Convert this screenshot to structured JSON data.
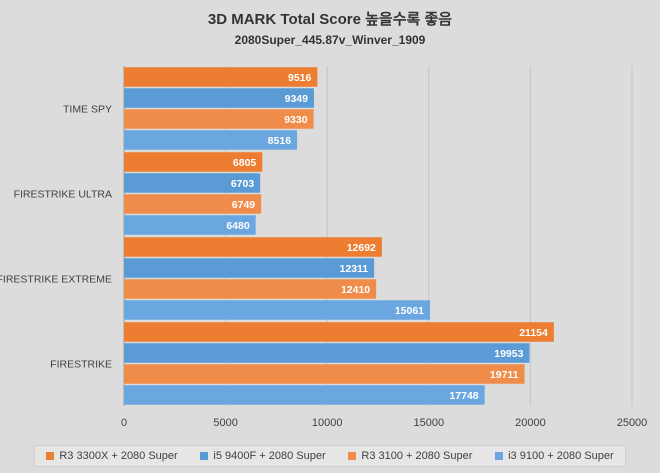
{
  "chart_data": {
    "type": "bar",
    "orientation": "horizontal",
    "title": "3D MARK Total Score 높을수록 좋음",
    "subtitle": "2080Super_445.87v_Winver_1909",
    "categories": [
      "TIME SPY",
      "FIRESTRIKE ULTRA",
      "FIRESTRIKE EXTREME",
      "FIRESTRIKE"
    ],
    "series": [
      {
        "name": "R3 3300X + 2080 Super",
        "color": "#ed7d31",
        "values": [
          9516,
          6805,
          12692,
          21154
        ]
      },
      {
        "name": "i5 9400F + 2080 Super",
        "color": "#5b9bd5",
        "values": [
          9349,
          6703,
          12311,
          19953
        ]
      },
      {
        "name": "R3 3100 + 2080 Super",
        "color": "#f08c4a",
        "values": [
          9330,
          6749,
          12410,
          19711
        ]
      },
      {
        "name": "i3 9100 + 2080 Super",
        "color": "#6aa6e0",
        "values": [
          8516,
          6480,
          15061,
          17748
        ]
      }
    ],
    "xlim": [
      0,
      25000
    ],
    "xticks": [
      "0",
      "5000",
      "10000",
      "15000",
      "20000",
      "25000"
    ],
    "grid": true,
    "legend_position": "bottom",
    "data_labels": true
  }
}
